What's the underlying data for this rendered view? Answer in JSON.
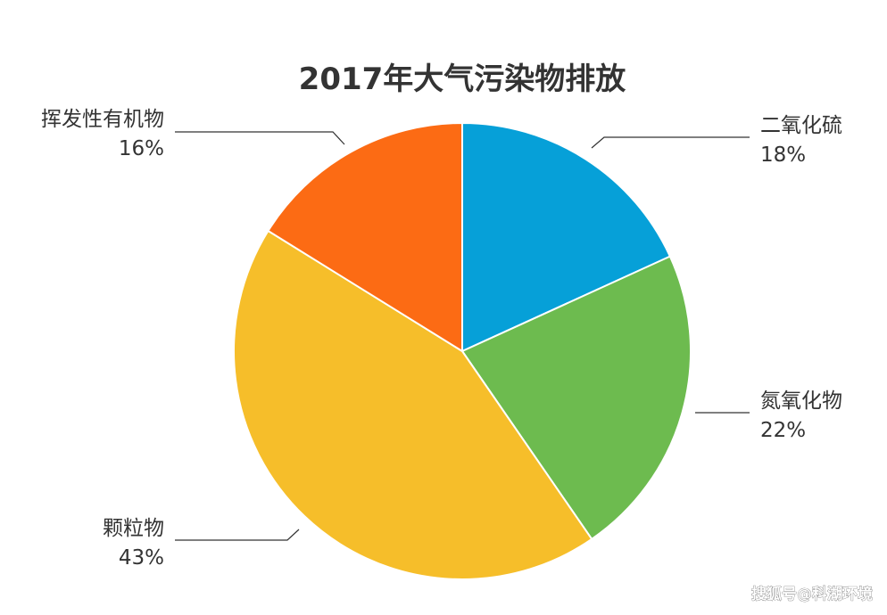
{
  "chart_data": {
    "type": "pie",
    "title": "2017年大气污染物排放",
    "start_angle_deg": 0,
    "direction": "clockwise",
    "slices": [
      {
        "label": "二氧化硫",
        "value": 18,
        "value_label": "18%",
        "color": "#06A0D8"
      },
      {
        "label": "氮氧化物",
        "value": 22,
        "value_label": "22%",
        "color": "#6DBB4F"
      },
      {
        "label": "颗粒物",
        "value": 43,
        "value_label": "43%",
        "color": "#F6BE2A"
      },
      {
        "label": "挥发性有机物",
        "value": 16,
        "value_label": "16%",
        "color": "#FC6B14"
      }
    ]
  },
  "watermark": "搜狐号@科湖环境"
}
